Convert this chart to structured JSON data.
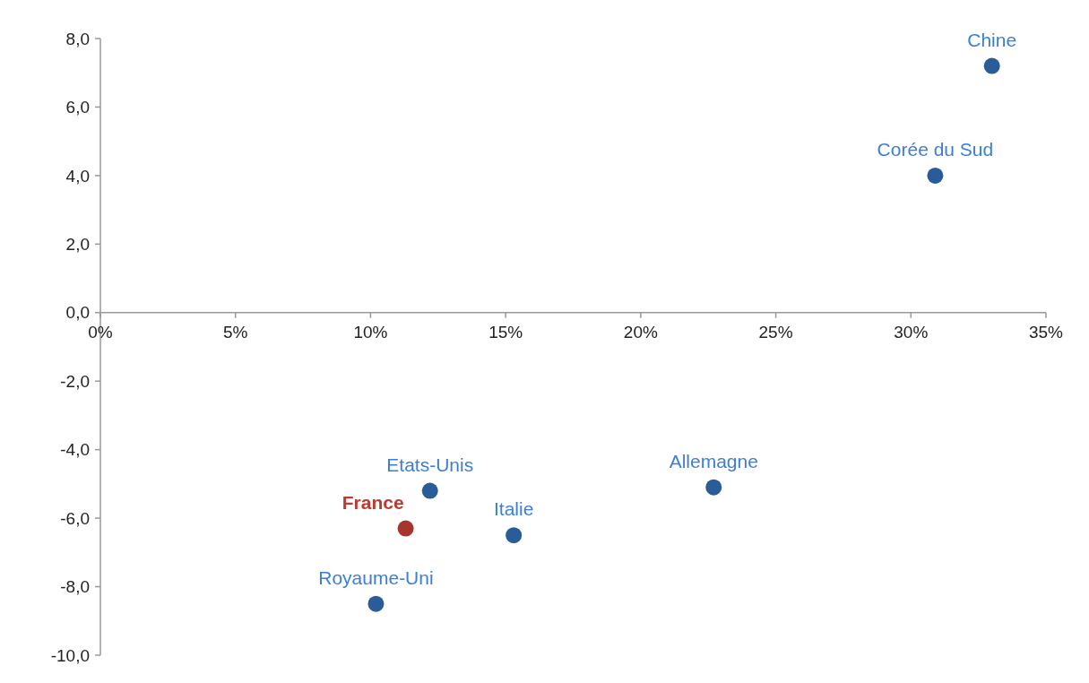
{
  "chart_data": {
    "type": "scatter",
    "marker": "circle",
    "xlim": [
      0,
      35
    ],
    "xticks": [
      {
        "value": 0,
        "label": "0%"
      },
      {
        "value": 5,
        "label": "5%"
      },
      {
        "value": 10,
        "label": "10%"
      },
      {
        "value": 15,
        "label": "15%"
      },
      {
        "value": 20,
        "label": "20%"
      },
      {
        "value": 25,
        "label": "25%"
      },
      {
        "value": 30,
        "label": "30%"
      },
      {
        "value": 35,
        "label": "35%"
      }
    ],
    "ylim": [
      -10,
      8
    ],
    "yticks": [
      {
        "value": 8,
        "label": "8,0"
      },
      {
        "value": 6,
        "label": "6,0"
      },
      {
        "value": 4,
        "label": "4,0"
      },
      {
        "value": 2,
        "label": "2,0"
      },
      {
        "value": 0,
        "label": "0,0"
      },
      {
        "value": -2,
        "label": "-2,0"
      },
      {
        "value": -4,
        "label": "-4,0"
      },
      {
        "value": -6,
        "label": "-6,0"
      },
      {
        "value": -8,
        "label": "-8,0"
      },
      {
        "value": -10,
        "label": "-10,0"
      }
    ],
    "series": [
      {
        "name": "Chine",
        "color": "#2b5c9a",
        "x": [
          33
        ],
        "values": [
          7.2
        ]
      },
      {
        "name": "Corée du Sud",
        "color": "#2b5c9a",
        "x": [
          30.9
        ],
        "values": [
          4.0
        ]
      },
      {
        "name": "Etats-Unis",
        "color": "#2b5c9a",
        "x": [
          12.2
        ],
        "values": [
          -5.2
        ]
      },
      {
        "name": "France",
        "color": "#a8352b",
        "x": [
          11.3
        ],
        "values": [
          -6.3
        ]
      },
      {
        "name": "Italie",
        "color": "#2b5c9a",
        "x": [
          15.3
        ],
        "values": [
          -6.5
        ]
      },
      {
        "name": "Allemagne",
        "color": "#2b5c9a",
        "x": [
          22.7
        ],
        "values": [
          -5.1
        ]
      },
      {
        "name": "Royaume-Uni",
        "color": "#2b5c9a",
        "x": [
          10.2
        ],
        "values": [
          -8.5
        ]
      }
    ]
  }
}
